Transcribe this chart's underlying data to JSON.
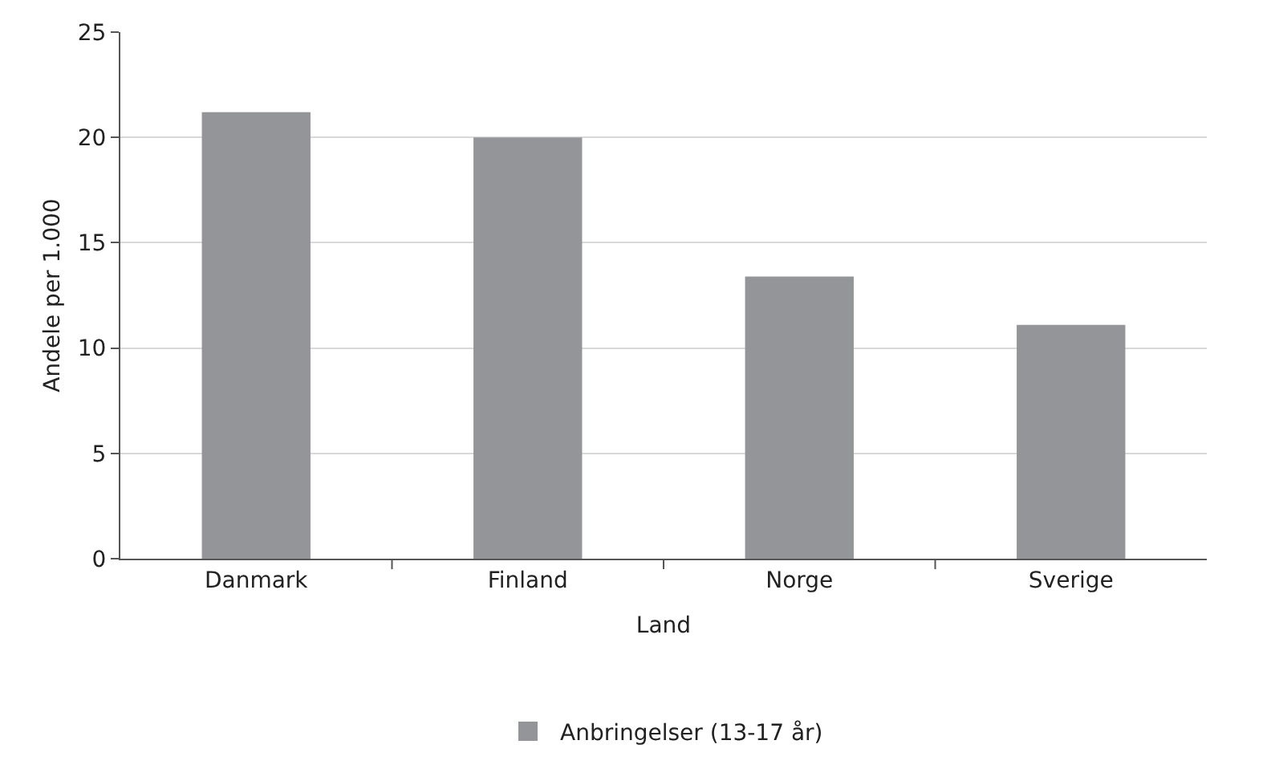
{
  "chart_data": {
    "type": "bar",
    "xlabel": "Land",
    "ylabel": "Andele per 1.000",
    "categories": [
      "Danmark",
      "Finland",
      "Norge",
      "Sverige"
    ],
    "series": [
      {
        "name": "Anbringelser (13-17 år)",
        "color": "#939598",
        "values": [
          21.2,
          20.0,
          13.4,
          11.1
        ]
      }
    ],
    "ylim": [
      0,
      25
    ],
    "yticks": [
      0,
      5,
      10,
      15,
      20,
      25
    ],
    "grid": "y",
    "legend": "bottom"
  }
}
